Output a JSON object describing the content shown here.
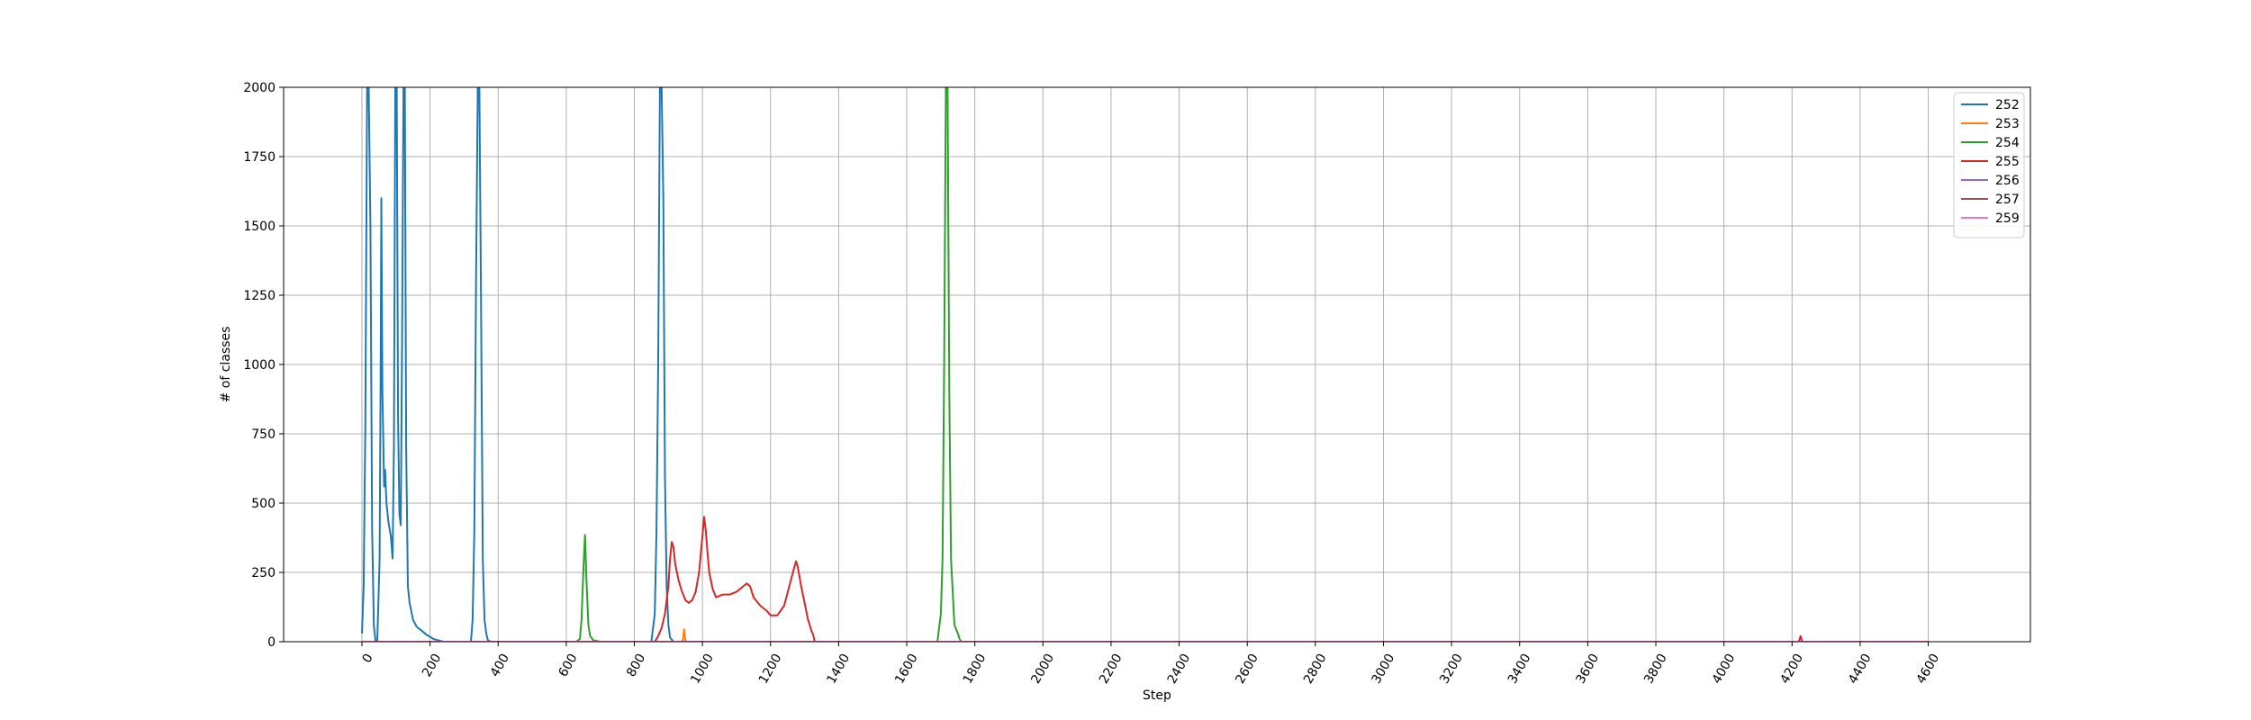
{
  "chart_data": {
    "type": "line",
    "title": "",
    "xlabel": "Step",
    "ylabel": "# of classes",
    "xlim": [
      -230,
      4900
    ],
    "ylim": [
      0,
      2000
    ],
    "xticks": [
      0,
      200,
      400,
      600,
      800,
      1000,
      1200,
      1400,
      1600,
      1800,
      2000,
      2200,
      2400,
      2600,
      2800,
      3000,
      3200,
      3400,
      3600,
      3800,
      4000,
      4200,
      4400,
      4600
    ],
    "yticks": [
      0,
      250,
      500,
      750,
      1000,
      1250,
      1500,
      1750,
      2000
    ],
    "grid": true,
    "legend_position": "top-right",
    "series": [
      {
        "name": "252",
        "color": "#1f77b4",
        "points": [
          [
            0,
            30
          ],
          [
            5,
            200
          ],
          [
            10,
            800
          ],
          [
            15,
            2000
          ],
          [
            20,
            2000
          ],
          [
            25,
            1500
          ],
          [
            30,
            400
          ],
          [
            35,
            60
          ],
          [
            40,
            0
          ],
          [
            45,
            0
          ],
          [
            52,
            300
          ],
          [
            55,
            1000
          ],
          [
            57,
            1600
          ],
          [
            60,
            900
          ],
          [
            65,
            560
          ],
          [
            68,
            620
          ],
          [
            72,
            500
          ],
          [
            78,
            430
          ],
          [
            85,
            380
          ],
          [
            90,
            300
          ],
          [
            94,
            700
          ],
          [
            98,
            2000
          ],
          [
            102,
            2000
          ],
          [
            106,
            800
          ],
          [
            110,
            460
          ],
          [
            114,
            420
          ],
          [
            118,
            1100
          ],
          [
            122,
            2000
          ],
          [
            126,
            2000
          ],
          [
            130,
            700
          ],
          [
            135,
            200
          ],
          [
            140,
            140
          ],
          [
            150,
            80
          ],
          [
            160,
            55
          ],
          [
            175,
            40
          ],
          [
            190,
            25
          ],
          [
            210,
            10
          ],
          [
            230,
            3
          ],
          [
            240,
            0
          ],
          [
            320,
            0
          ],
          [
            325,
            80
          ],
          [
            330,
            400
          ],
          [
            335,
            1300
          ],
          [
            340,
            2000
          ],
          [
            345,
            2000
          ],
          [
            350,
            1200
          ],
          [
            355,
            300
          ],
          [
            360,
            80
          ],
          [
            365,
            30
          ],
          [
            370,
            5
          ],
          [
            380,
            0
          ],
          [
            850,
            0
          ],
          [
            860,
            100
          ],
          [
            865,
            400
          ],
          [
            870,
            1000
          ],
          [
            875,
            2000
          ],
          [
            880,
            2000
          ],
          [
            885,
            1600
          ],
          [
            890,
            600
          ],
          [
            895,
            200
          ],
          [
            900,
            60
          ],
          [
            905,
            15
          ],
          [
            915,
            0
          ],
          [
            4400,
            0
          ]
        ]
      },
      {
        "name": "253",
        "color": "#ff7f0e",
        "points": [
          [
            940,
            0
          ],
          [
            943,
            10
          ],
          [
            946,
            45
          ],
          [
            949,
            10
          ],
          [
            952,
            0
          ],
          [
            4400,
            0
          ]
        ]
      },
      {
        "name": "254",
        "color": "#2ca02c",
        "points": [
          [
            600,
            0
          ],
          [
            630,
            0
          ],
          [
            640,
            10
          ],
          [
            645,
            80
          ],
          [
            650,
            250
          ],
          [
            655,
            385
          ],
          [
            660,
            200
          ],
          [
            665,
            60
          ],
          [
            670,
            20
          ],
          [
            680,
            5
          ],
          [
            700,
            0
          ],
          [
            1690,
            0
          ],
          [
            1700,
            100
          ],
          [
            1705,
            300
          ],
          [
            1710,
            1000
          ],
          [
            1715,
            2000
          ],
          [
            1720,
            2000
          ],
          [
            1725,
            900
          ],
          [
            1730,
            300
          ],
          [
            1740,
            60
          ],
          [
            1750,
            30
          ],
          [
            1755,
            10
          ],
          [
            1760,
            0
          ],
          [
            4400,
            0
          ]
        ]
      },
      {
        "name": "255",
        "color": "#d62728",
        "points": [
          [
            800,
            0
          ],
          [
            860,
            0
          ],
          [
            870,
            20
          ],
          [
            880,
            50
          ],
          [
            890,
            100
          ],
          [
            900,
            200
          ],
          [
            905,
            300
          ],
          [
            910,
            360
          ],
          [
            915,
            340
          ],
          [
            920,
            280
          ],
          [
            930,
            220
          ],
          [
            940,
            180
          ],
          [
            950,
            150
          ],
          [
            960,
            140
          ],
          [
            970,
            150
          ],
          [
            980,
            180
          ],
          [
            990,
            250
          ],
          [
            1000,
            380
          ],
          [
            1005,
            450
          ],
          [
            1010,
            400
          ],
          [
            1015,
            320
          ],
          [
            1020,
            250
          ],
          [
            1030,
            190
          ],
          [
            1040,
            160
          ],
          [
            1060,
            170
          ],
          [
            1080,
            170
          ],
          [
            1100,
            180
          ],
          [
            1120,
            200
          ],
          [
            1130,
            210
          ],
          [
            1140,
            200
          ],
          [
            1150,
            160
          ],
          [
            1170,
            130
          ],
          [
            1190,
            110
          ],
          [
            1200,
            95
          ],
          [
            1220,
            95
          ],
          [
            1240,
            130
          ],
          [
            1255,
            200
          ],
          [
            1270,
            270
          ],
          [
            1275,
            290
          ],
          [
            1280,
            270
          ],
          [
            1290,
            200
          ],
          [
            1300,
            140
          ],
          [
            1310,
            80
          ],
          [
            1320,
            40
          ],
          [
            1325,
            25
          ],
          [
            1330,
            0
          ],
          [
            4220,
            0
          ],
          [
            4225,
            20
          ],
          [
            4230,
            0
          ],
          [
            4400,
            0
          ]
        ]
      },
      {
        "name": "256",
        "color": "#9467bd",
        "points": [
          [
            0,
            0
          ],
          [
            4600,
            0
          ]
        ]
      },
      {
        "name": "257",
        "color": "#8c564b",
        "points": [
          [
            0,
            0
          ],
          [
            4600,
            0
          ]
        ]
      },
      {
        "name": "259",
        "color": "#e377c2",
        "points": [
          [
            0,
            0
          ],
          [
            4600,
            0
          ]
        ]
      }
    ]
  }
}
